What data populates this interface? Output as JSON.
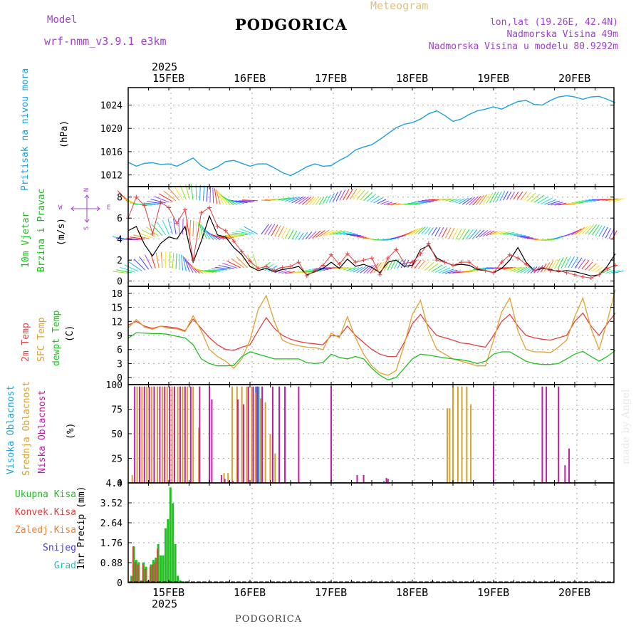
{
  "header": {
    "model_label": "Model",
    "model_name": "wrf-nmm_v3.9.1 e3km",
    "title": "PODGORICA",
    "meteogram": "Meteogram",
    "lonlat": "lon,lat (19.26E, 42.4N)",
    "altitude": "Nadmorska Visina 49m",
    "model_altitude": "Nadmorska Visina u modelu 80.9292m",
    "footer": "PODGORICA",
    "credit": "made by Angel"
  },
  "colors": {
    "pressure": "#1ea0dc",
    "wind_label": "#10c010",
    "speed_black": "#000000",
    "gust_red": "#e04040",
    "temp2m": "#e04040",
    "sfc": "#e0a030",
    "dewpt": "#20c020",
    "high_cloud": "#1ea0dc",
    "mid_cloud": "#d8a030",
    "low_cloud": "#c020a0",
    "total_precip": "#20c020",
    "conv_precip": "#e04040",
    "frozen": "#f08030",
    "snow": "#4040e0",
    "hail": "#20c0c0",
    "magenta": "#a040d0",
    "gold": "#e0c080"
  },
  "date_axis": {
    "year": "2025",
    "days": [
      "15FEB",
      "16FEB",
      "17FEB",
      "18FEB",
      "19FEB",
      "20FEB"
    ]
  },
  "labels": {
    "pressure": [
      "Pritisak na nivou mora",
      "(hPa)"
    ],
    "wind": [
      "10m Vjetar",
      "Brzina i Pravac",
      "(m/s)"
    ],
    "compass": {
      "n": "N",
      "s": "S",
      "w": "W",
      "e": "E"
    },
    "temp": [
      "2m Temp",
      "SFC Temp",
      "dewpt Temp",
      "(C)"
    ],
    "cloud": [
      "Visoka Oblacnost",
      "Srednja Oblacnost",
      "Niska Oblacnost",
      "(%)"
    ],
    "precip": [
      "Ukupna Kisa",
      "Konvek.Kisa",
      "Zaledj.Kisa",
      "Snijeg",
      "Grad",
      "1hr Precip (mm)"
    ]
  },
  "chart_data": [
    {
      "type": "line",
      "title": "Pritisak na nivou mora",
      "ylabel": "(hPa)",
      "ylim": [
        1010,
        1027
      ],
      "yticks": [
        "1012",
        "1016",
        "1020",
        "1024"
      ],
      "x_day": [
        0,
        0.1,
        0.2,
        0.3,
        0.4,
        0.5,
        0.6,
        0.7,
        0.8,
        0.9,
        1.0,
        1.1,
        1.2,
        1.3,
        1.4,
        1.5,
        1.6,
        1.7,
        1.8,
        1.9,
        2.0,
        2.1,
        2.2,
        2.3,
        2.4,
        2.5,
        2.6,
        2.7,
        2.8,
        2.9,
        3.0,
        3.1,
        3.2,
        3.3,
        3.4,
        3.5,
        3.6,
        3.7,
        3.8,
        3.9,
        4.0,
        4.1,
        4.2,
        4.3,
        4.4,
        4.5,
        4.6,
        4.7,
        4.8,
        4.9,
        5.0,
        5.1,
        5.2,
        5.3,
        5.4,
        5.5,
        5.6,
        5.7,
        5.8,
        5.9,
        6.0
      ],
      "values": [
        1014.2,
        1013.5,
        1014.0,
        1014.1,
        1013.8,
        1013.9,
        1013.5,
        1014.2,
        1014.9,
        1013.6,
        1012.8,
        1013.4,
        1014.3,
        1014.5,
        1014.0,
        1013.5,
        1013.9,
        1013.9,
        1013.2,
        1012.4,
        1011.9,
        1012.6,
        1013.4,
        1013.9,
        1013.5,
        1013.6,
        1014.5,
        1015.2,
        1016.3,
        1016.8,
        1017.2,
        1018.1,
        1019.1,
        1020.1,
        1020.7,
        1021.0,
        1021.6,
        1022.5,
        1023.0,
        1022.2,
        1021.2,
        1021.6,
        1022.4,
        1023.0,
        1023.3,
        1023.7,
        1023.3,
        1024.0,
        1024.6,
        1024.8,
        1024.1,
        1024.0,
        1024.8,
        1025.4,
        1025.6,
        1025.4,
        1025.0,
        1025.4,
        1025.5,
        1025.0,
        1024.4
      ]
    },
    {
      "type": "line",
      "title": "10m Vjetar Brzina i Pravac",
      "ylabel": "(m/s)",
      "ylim": [
        -0.5,
        9
      ],
      "yticks": [
        "0",
        "2",
        "4",
        "6",
        "8"
      ],
      "x_day": [
        0,
        0.1,
        0.2,
        0.3,
        0.4,
        0.5,
        0.6,
        0.7,
        0.8,
        0.9,
        1.0,
        1.1,
        1.2,
        1.3,
        1.4,
        1.5,
        1.6,
        1.7,
        1.8,
        1.9,
        2.0,
        2.1,
        2.2,
        2.3,
        2.4,
        2.5,
        2.6,
        2.7,
        2.8,
        2.9,
        3.0,
        3.1,
        3.2,
        3.3,
        3.4,
        3.5,
        3.6,
        3.7,
        3.8,
        3.9,
        4.0,
        4.1,
        4.2,
        4.3,
        4.4,
        4.5,
        4.6,
        4.7,
        4.8,
        4.9,
        5.0,
        5.1,
        5.2,
        5.3,
        5.4,
        5.5,
        5.6,
        5.7,
        5.8,
        5.9,
        6.0
      ],
      "series": [
        {
          "name": "speed",
          "values": [
            4.8,
            5.2,
            3.5,
            2.4,
            3.6,
            4.2,
            4.0,
            5.2,
            1.8,
            3.8,
            6.2,
            4.4,
            4.2,
            3.2,
            2.5,
            1.4,
            1.0,
            1.2,
            0.9,
            1.1,
            1.2,
            1.4,
            0.6,
            0.9,
            1.2,
            1.8,
            1.2,
            2.1,
            1.4,
            1.6,
            1.3,
            0.8,
            1.8,
            2.0,
            1.4,
            1.5,
            3.0,
            3.4,
            2.2,
            1.8,
            1.5,
            1.6,
            1.5,
            1.1,
            1.0,
            0.8,
            1.2,
            2.0,
            3.2,
            1.8,
            1.0,
            1.2,
            1.1,
            0.9,
            1.0,
            0.9,
            0.7,
            0.5,
            0.6,
            1.4,
            2.6
          ]
        },
        {
          "name": "gust",
          "values": [
            6.0,
            8.0,
            7.2,
            4.5,
            7.5,
            7.0,
            5.5,
            6.8,
            2.0,
            6.5,
            7.0,
            5.2,
            4.8,
            3.8,
            2.8,
            1.9,
            1.2,
            1.4,
            1.0,
            1.3,
            1.4,
            1.8,
            0.5,
            1.0,
            1.5,
            2.5,
            1.6,
            2.6,
            1.8,
            2.0,
            2.2,
            0.6,
            2.2,
            3.0,
            1.7,
            1.8,
            2.6,
            3.6,
            2.0,
            1.8,
            1.5,
            1.8,
            1.8,
            1.2,
            1.0,
            0.8,
            1.8,
            2.5,
            2.2,
            1.6,
            1.0,
            1.3,
            1.0,
            1.0,
            0.8,
            0.6,
            0.4,
            0.3,
            0.6,
            1.2,
            1.5
          ]
        }
      ],
      "barb_rows": [
        {
          "y": 7.5,
          "name": "upper"
        },
        {
          "y": 4.2,
          "name": "middle"
        },
        {
          "y": 1.0,
          "name": "lower"
        }
      ],
      "compass": "W < - > E, N / S"
    },
    {
      "type": "line",
      "title": "2m Temp / SFC Temp / dewpt Temp",
      "ylabel": "(C)",
      "ylim": [
        -1.5,
        19.5
      ],
      "yticks": [
        "0",
        "3",
        "6",
        "9",
        "12",
        "15",
        "18"
      ],
      "x_day": [
        0,
        0.1,
        0.2,
        0.3,
        0.4,
        0.5,
        0.6,
        0.7,
        0.8,
        0.9,
        1.0,
        1.1,
        1.2,
        1.3,
        1.4,
        1.5,
        1.6,
        1.7,
        1.8,
        1.9,
        2.0,
        2.1,
        2.2,
        2.3,
        2.4,
        2.5,
        2.6,
        2.7,
        2.8,
        2.9,
        3.0,
        3.1,
        3.2,
        3.3,
        3.4,
        3.5,
        3.6,
        3.7,
        3.8,
        3.9,
        4.0,
        4.1,
        4.2,
        4.3,
        4.4,
        4.5,
        4.6,
        4.7,
        4.8,
        4.9,
        5.0,
        5.1,
        5.2,
        5.3,
        5.4,
        5.5,
        5.6,
        5.7,
        5.8,
        5.9,
        6.0
      ],
      "series": [
        {
          "name": "2m Temp",
          "values": [
            11.2,
            12.0,
            11.0,
            10.5,
            11.0,
            10.8,
            10.6,
            10.0,
            12.5,
            10.5,
            8.5,
            7.0,
            6.0,
            5.8,
            6.5,
            7.0,
            10.0,
            12.8,
            10.5,
            9.0,
            8.2,
            7.7,
            7.4,
            7.2,
            7.0,
            9.0,
            8.8,
            11.0,
            9.0,
            7.5,
            6.0,
            5.0,
            4.5,
            4.5,
            7.5,
            11.5,
            13.5,
            11.0,
            9.0,
            8.5,
            8.0,
            7.4,
            7.2,
            6.8,
            6.5,
            9.0,
            12.0,
            13.5,
            11.0,
            9.0,
            8.5,
            8.2,
            8.0,
            8.5,
            9.0,
            12.0,
            13.8,
            11.0,
            9.0,
            11.5,
            13.8
          ]
        },
        {
          "name": "SFC Temp",
          "values": [
            10.6,
            12.4,
            10.8,
            10.3,
            11.0,
            10.5,
            10.4,
            9.8,
            13.2,
            10.0,
            6.0,
            4.5,
            3.5,
            2.0,
            4.0,
            8.0,
            14.5,
            17.5,
            12.0,
            8.0,
            7.2,
            6.8,
            6.5,
            6.4,
            6.0,
            9.5,
            8.5,
            13.0,
            8.5,
            5.0,
            2.5,
            1.0,
            0.5,
            1.5,
            7.0,
            13.5,
            16.5,
            10.0,
            6.0,
            5.0,
            4.0,
            3.5,
            3.0,
            2.5,
            2.5,
            8.0,
            14.0,
            17.0,
            10.0,
            6.0,
            5.5,
            5.5,
            5.3,
            6.5,
            8.0,
            13.0,
            17.0,
            10.5,
            6.0,
            12.0,
            18.8
          ]
        },
        {
          "name": "dewpt Temp",
          "values": [
            8.4,
            9.6,
            9.5,
            9.4,
            9.4,
            9.2,
            8.8,
            8.5,
            7.0,
            4.0,
            3.0,
            2.5,
            2.5,
            2.6,
            4.5,
            5.5,
            5.0,
            4.5,
            4.0,
            4.0,
            4.0,
            4.0,
            3.2,
            3.0,
            3.2,
            5.0,
            4.3,
            4.0,
            4.5,
            4.0,
            2.0,
            0.5,
            -0.5,
            0.0,
            2.0,
            4.0,
            5.0,
            4.8,
            4.5,
            4.2,
            4.0,
            3.8,
            3.5,
            3.0,
            3.5,
            5.0,
            5.5,
            5.5,
            4.5,
            3.5,
            3.0,
            2.8,
            2.8,
            3.0,
            4.0,
            5.0,
            5.6,
            4.5,
            3.5,
            4.5,
            5.8
          ]
        }
      ]
    },
    {
      "type": "bar",
      "title": "Oblacnost",
      "ylabel": "(%)",
      "ylim": [
        0,
        100
      ],
      "yticks": [
        "0",
        "25",
        "50",
        "75",
        "100"
      ],
      "series": [
        {
          "name": "Visoka Oblacnost",
          "color": "#1ea0dc",
          "x_day": [
            1.58,
            1.6,
            3.15
          ],
          "values": [
            98,
            98,
            2
          ]
        },
        {
          "name": "Srednja Oblacnost",
          "color": "#d8a030",
          "x_day": [
            0.05,
            0.11,
            0.17,
            0.23,
            0.29,
            0.36,
            0.42,
            0.48,
            0.54,
            0.61,
            0.67,
            0.73,
            0.8,
            0.87,
            1.18,
            1.23,
            1.28,
            1.34,
            1.4,
            1.46,
            1.52,
            1.57,
            1.63,
            1.69,
            1.75,
            1.81,
            3.93,
            3.96,
            4.0,
            4.06,
            4.11,
            4.17,
            4.22
          ],
          "values": [
            8,
            98,
            98,
            98,
            98,
            98,
            98,
            98,
            98,
            98,
            98,
            98,
            98,
            56,
            10,
            10,
            98,
            98,
            98,
            98,
            98,
            92,
            86,
            82,
            50,
            30,
            76,
            76,
            98,
            98,
            98,
            98,
            80
          ]
        },
        {
          "name": "Niska Oblacnost",
          "color": "#c020a0",
          "x_day": [
            0.08,
            0.14,
            0.2,
            0.26,
            0.32,
            0.39,
            0.45,
            0.51,
            0.57,
            0.64,
            0.7,
            0.77,
            0.88,
            1.0,
            1.03,
            1.15,
            1.19,
            1.24,
            1.29,
            1.35,
            1.42,
            1.48,
            1.54,
            1.59,
            1.65,
            1.78,
            1.86,
            1.93,
            2.1,
            2.5,
            2.82,
            2.9,
            3.18,
            3.2,
            4.5,
            5.1,
            5.15,
            5.3,
            5.38,
            5.43
          ],
          "values": [
            98,
            98,
            98,
            98,
            98,
            98,
            98,
            98,
            98,
            98,
            98,
            98,
            98,
            98,
            85,
            8,
            4,
            2,
            2,
            85,
            80,
            98,
            98,
            98,
            98,
            98,
            98,
            98,
            98,
            98,
            8,
            8,
            5,
            4,
            98,
            98,
            98,
            98,
            18,
            35
          ]
        }
      ]
    },
    {
      "type": "bar",
      "title": "1hr Precip",
      "ylabel": "1hr Precip (mm)",
      "ylim": [
        0,
        4.4
      ],
      "yticks": [
        "0",
        "0.88",
        "1.76",
        "2.64",
        "3.52",
        "4.4"
      ],
      "series": [
        {
          "name": "Ukupna Kisa",
          "color": "#20c020",
          "x_day": [
            0.04,
            0.07,
            0.1,
            0.13,
            0.16,
            0.19,
            0.22,
            0.25,
            0.28,
            0.31,
            0.34,
            0.37,
            0.4,
            0.43,
            0.46,
            0.49,
            0.52,
            0.55,
            0.58,
            0.61,
            0.64,
            0.67,
            0.7,
            0.73
          ],
          "values": [
            0.3,
            1.6,
            1.0,
            0.9,
            0.1,
            0.9,
            0.7,
            0.1,
            0.8,
            1.0,
            1.1,
            1.7,
            1.2,
            1.2,
            2.4,
            2.8,
            4.2,
            3.5,
            1.7,
            0.3,
            0.1,
            0.05,
            0.05,
            0.05
          ]
        },
        {
          "name": "Konvek.Kisa",
          "color": "#e04040",
          "x_day": [
            0.07,
            0.1,
            0.13,
            0.19,
            0.22,
            0.28,
            0.31,
            0.34,
            0.37
          ],
          "values": [
            1.6,
            0.9,
            0.8,
            0.85,
            0.6,
            0.7,
            0.8,
            0.9,
            1.5
          ]
        },
        {
          "name": "Zaledj.Kisa",
          "color": "#f08030",
          "x_day": [],
          "values": []
        },
        {
          "name": "Snijeg",
          "color": "#4040e0",
          "x_day": [],
          "values": []
        },
        {
          "name": "Grad",
          "color": "#20c0c0",
          "x_day": [],
          "values": []
        }
      ]
    }
  ]
}
